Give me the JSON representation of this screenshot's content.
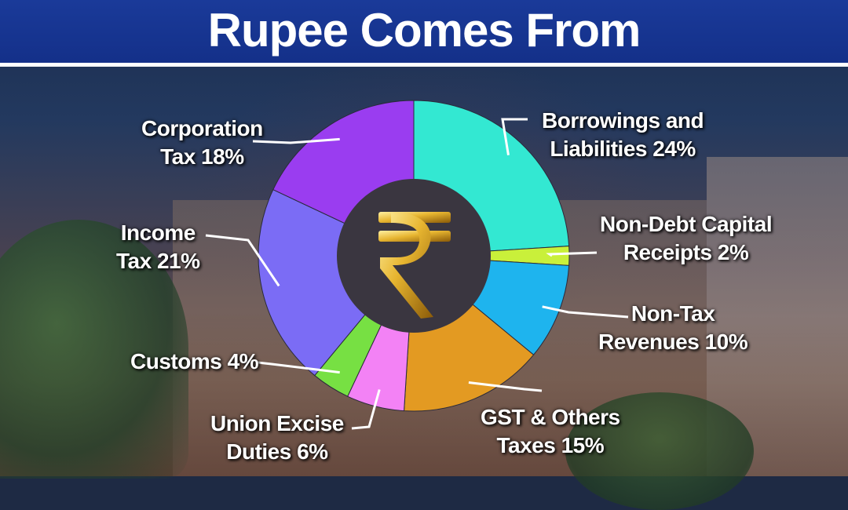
{
  "header": {
    "title": "Rupee Comes From"
  },
  "chart_data": {
    "type": "pie",
    "title": "Rupee Comes From",
    "center_icon": "rupee-symbol-icon",
    "slices": [
      {
        "label_line1": "Borrowings and",
        "label_line2": "Liabilities 24%",
        "value": 24,
        "color": "#33e8d2"
      },
      {
        "label_line1": "Non-Debt Capital",
        "label_line2": "Receipts 2%",
        "value": 2,
        "color": "#c9f03a"
      },
      {
        "label_line1": "Non-Tax",
        "label_line2": "Revenues 10%",
        "value": 10,
        "color": "#1eb4ee"
      },
      {
        "label_line1": "GST & Others",
        "label_line2": "Taxes 15%",
        "value": 15,
        "color": "#e39a22"
      },
      {
        "label_line1": "Union Excise",
        "label_line2": "Duties 6%",
        "value": 6,
        "color": "#f382f5"
      },
      {
        "label_line1": "Customs 4%",
        "label_line2": "",
        "value": 4,
        "color": "#77e043"
      },
      {
        "label_line1": "Income",
        "label_line2": "Tax 21%",
        "value": 21,
        "color": "#7b6cf5"
      },
      {
        "label_line1": "Corporation",
        "label_line2": "Tax 18%",
        "value": 18,
        "color": "#9a3df0"
      }
    ]
  }
}
